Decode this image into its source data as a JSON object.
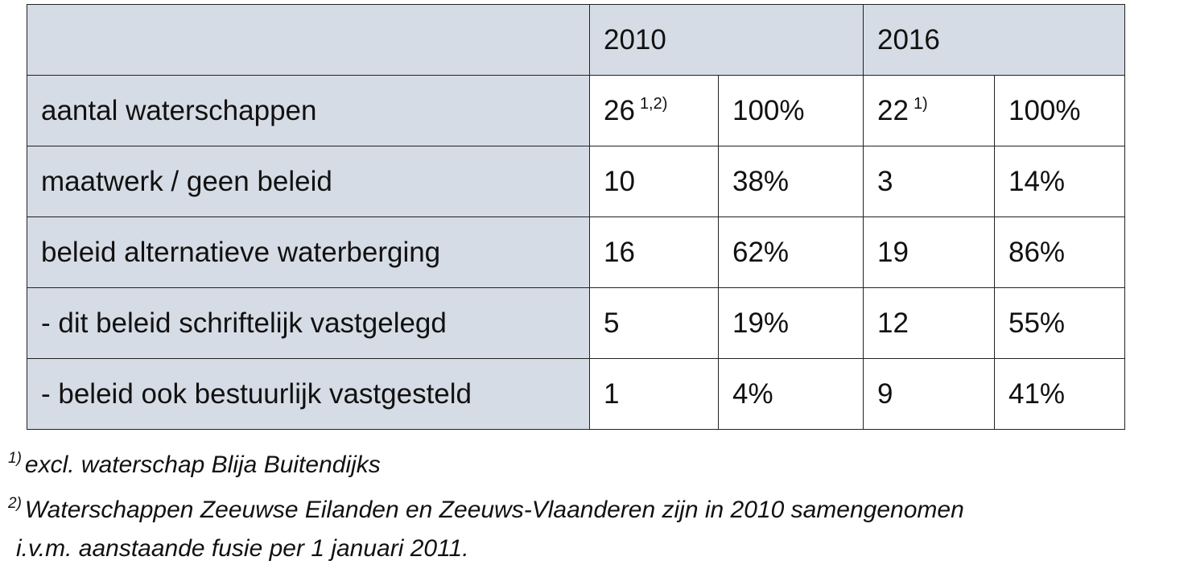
{
  "table": {
    "years": [
      "2010",
      "2016"
    ],
    "rows": [
      {
        "label": "aantal waterschappen",
        "cells": [
          {
            "text": "26",
            "note": "1,2)"
          },
          "100%",
          {
            "text": "22",
            "note": "1)"
          },
          "100%"
        ]
      },
      {
        "label": "maatwerk / geen beleid",
        "cells": [
          "10",
          "38%",
          "3",
          "14%"
        ]
      },
      {
        "label": "beleid alternatieve waterberging",
        "cells": [
          "16",
          "62%",
          "19",
          "86%"
        ]
      },
      {
        "label": "- dit beleid schriftelijk vastgelegd",
        "cells": [
          "5",
          "19%",
          "12",
          "55%"
        ]
      },
      {
        "label": "- beleid ook bestuurlijk vastgesteld",
        "cells": [
          "1",
          "4%",
          "9",
          "41%"
        ]
      }
    ]
  },
  "footnotes": [
    {
      "mark": "1)",
      "lines": [
        "excl. waterschap Blija Buitendijks"
      ]
    },
    {
      "mark": "2)",
      "lines": [
        "Waterschappen Zeeuwse Eilanden en Zeeuws-Vlaanderen zijn in 2010 samengenomen",
        "i.v.m. aanstaande fusie per 1 januari 2011."
      ]
    }
  ]
}
